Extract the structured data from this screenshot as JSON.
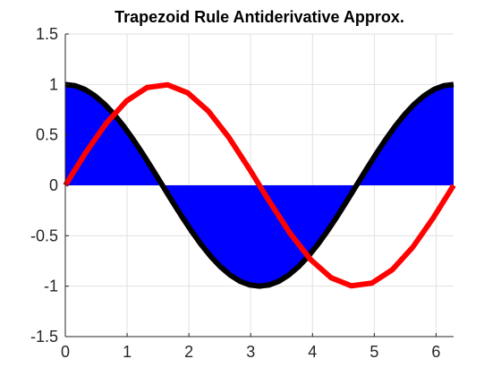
{
  "chart_data": {
    "type": "line",
    "title": "Trapezoid Rule Antiderivative Approx.",
    "xlabel": "",
    "ylabel": "",
    "xlim": [
      0,
      6.2832
    ],
    "ylim": [
      -1.5,
      1.5
    ],
    "xticks": [
      0,
      1,
      2,
      3,
      4,
      5,
      6
    ],
    "yticks": [
      -1.5,
      -1,
      -0.5,
      0,
      0.5,
      1,
      1.5
    ],
    "xtick_labels": [
      "0",
      "1",
      "2",
      "3",
      "4",
      "5",
      "6"
    ],
    "ytick_labels": [
      "-1.5",
      "-1",
      "-0.5",
      "0",
      "0.5",
      "1",
      "1.5"
    ],
    "grid": true,
    "area": {
      "x": [
        0,
        0.3307,
        0.6614,
        0.9921,
        1.3228,
        1.6535,
        1.9842,
        2.3149,
        2.6456,
        2.9762,
        3.3069,
        3.6376,
        3.9683,
        4.299,
        4.6297,
        4.9604,
        5.2911,
        5.6218,
        5.9525,
        6.2832
      ],
      "values": [
        1,
        0.9458,
        0.7891,
        0.5469,
        0.2455,
        -0.0826,
        -0.4017,
        -0.6773,
        -0.8795,
        -0.9864,
        -0.9864,
        -0.8795,
        -0.6773,
        -0.4017,
        -0.0826,
        0.2455,
        0.5469,
        0.7891,
        0.9458,
        1
      ],
      "color": "#0000ff",
      "baseline": 0
    },
    "series": [
      {
        "x": [
          0,
          0.1571,
          0.3142,
          0.4712,
          0.6283,
          0.7854,
          0.9425,
          1.0996,
          1.2566,
          1.4137,
          1.5708,
          1.7279,
          1.885,
          2.042,
          2.1991,
          2.3562,
          2.5133,
          2.6704,
          2.8274,
          2.9845,
          3.1416,
          3.2987,
          3.4558,
          3.6128,
          3.7699,
          3.927,
          4.0841,
          4.2412,
          4.3982,
          4.5553,
          4.7124,
          4.8695,
          5.0265,
          5.1836,
          5.3407,
          5.4978,
          5.6549,
          5.812,
          5.969,
          6.1261,
          6.2832
        ],
        "values": [
          1,
          0.9877,
          0.9511,
          0.891,
          0.809,
          0.7071,
          0.5878,
          0.454,
          0.309,
          0.1564,
          0,
          -0.1564,
          -0.309,
          -0.454,
          -0.5878,
          -0.7071,
          -0.809,
          -0.891,
          -0.9511,
          -0.9877,
          -1,
          -0.9877,
          -0.9511,
          -0.891,
          -0.809,
          -0.7071,
          -0.5878,
          -0.454,
          -0.309,
          -0.1564,
          0,
          0.1564,
          0.309,
          0.454,
          0.5878,
          0.7071,
          0.809,
          0.891,
          0.9511,
          0.9877,
          1
        ],
        "color": "#000000"
      },
      {
        "x": [
          0,
          0.3307,
          0.6614,
          0.9921,
          1.3228,
          1.6535,
          1.9842,
          2.3149,
          2.6456,
          2.9762,
          3.3069,
          3.6376,
          3.9683,
          4.299,
          4.6297,
          4.9604,
          5.2911,
          5.6218,
          5.9525,
          6.2832
        ],
        "values": [
          0,
          0.3247,
          0.6142,
          0.8372,
          0.9694,
          0.9966,
          0.9158,
          0.7357,
          0.4759,
          0.1646,
          -0.1646,
          -0.4759,
          -0.7357,
          -0.9158,
          -0.9966,
          -0.9694,
          -0.8372,
          -0.6142,
          -0.3247,
          0
        ],
        "color": "#ff0000"
      }
    ]
  }
}
